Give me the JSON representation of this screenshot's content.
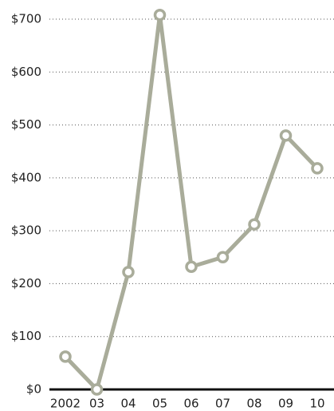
{
  "chart_data": {
    "type": "line",
    "categories": [
      "2002",
      "03",
      "04",
      "05",
      "06",
      "07",
      "08",
      "09",
      "10"
    ],
    "series": [
      {
        "color": "#a9ac9a",
        "values": [
          62,
          0,
          222,
          708,
          232,
          250,
          312,
          480,
          418
        ]
      }
    ],
    "ylim": [
      0,
      700
    ],
    "yticks": [
      {
        "value": 0,
        "label": "$0"
      },
      {
        "value": 100,
        "label": "$100"
      },
      {
        "value": 200,
        "label": "$200"
      },
      {
        "value": 300,
        "label": "$300"
      },
      {
        "value": 400,
        "label": "$400"
      },
      {
        "value": 500,
        "label": "$500"
      },
      {
        "value": 600,
        "label": "$600"
      },
      {
        "value": 700,
        "label": "$700"
      }
    ],
    "grid": true
  }
}
